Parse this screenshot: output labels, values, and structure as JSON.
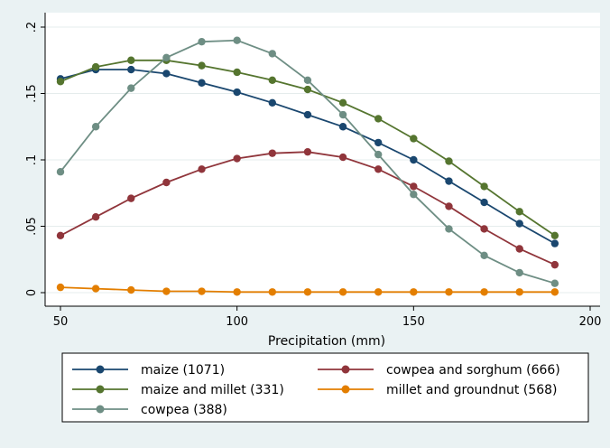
{
  "chart_data": {
    "type": "line",
    "xlabel": "Precipitation (mm)",
    "ylabel": "",
    "title": "",
    "xlim": [
      50,
      200
    ],
    "ylim": [
      0,
      0.2
    ],
    "x_ticks": [
      50,
      100,
      150,
      200
    ],
    "x_tick_labels": [
      "50",
      "100",
      "150",
      "200"
    ],
    "y_ticks": [
      0,
      0.05,
      0.1,
      0.15,
      0.2
    ],
    "y_tick_labels": [
      "0",
      ".05",
      ".1",
      ".15",
      ".2"
    ],
    "grid": true,
    "legend_position": "bottom",
    "x": [
      50,
      60,
      70,
      80,
      90,
      100,
      110,
      120,
      130,
      140,
      150,
      160,
      170,
      180,
      190
    ],
    "series": [
      {
        "name": "maize (1071)",
        "color": "#1a476f",
        "values": [
          0.161,
          0.168,
          0.168,
          0.165,
          0.158,
          0.151,
          0.143,
          0.134,
          0.125,
          0.113,
          0.1,
          0.084,
          0.068,
          0.052,
          0.037
        ]
      },
      {
        "name": "cowpea and sorghum (666)",
        "color": "#90353b",
        "values": [
          0.043,
          0.057,
          0.071,
          0.083,
          0.093,
          0.101,
          0.105,
          0.106,
          0.102,
          0.093,
          0.08,
          0.065,
          0.048,
          0.033,
          0.021
        ]
      },
      {
        "name": "maize and millet (331)",
        "color": "#55752f",
        "values": [
          0.159,
          0.17,
          0.175,
          0.175,
          0.171,
          0.166,
          0.16,
          0.153,
          0.143,
          0.131,
          0.116,
          0.099,
          0.08,
          0.061,
          0.043
        ]
      },
      {
        "name": "millet and groundnut (568)",
        "color": "#e37e00",
        "values": [
          0.004,
          0.003,
          0.002,
          0.001,
          0.001,
          0.0005,
          0.0005,
          0.0005,
          0.0005,
          0.0005,
          0.0005,
          0.0005,
          0.0005,
          0.0005,
          0.0005
        ]
      },
      {
        "name": "cowpea (388)",
        "color": "#6e8e84",
        "values": [
          0.091,
          0.125,
          0.154,
          0.177,
          0.189,
          0.19,
          0.18,
          0.16,
          0.134,
          0.104,
          0.074,
          0.048,
          0.028,
          0.015,
          0.007
        ]
      }
    ]
  }
}
